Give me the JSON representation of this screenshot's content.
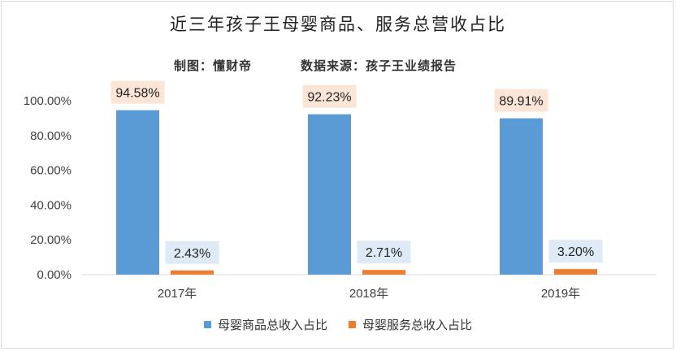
{
  "title": "近三年孩子王母婴商品、服务总营收占比",
  "subtitle_left": "制图：懂财帝",
  "subtitle_right": "数据来源：孩子王业绩报告",
  "colors": {
    "series1": "#5b9bd5",
    "series2": "#ed7d31",
    "label_bg1": "#fbe5d6",
    "label_bg2": "#deebf7",
    "grid": "#d9d9d9",
    "axis_text": "#404040"
  },
  "chart_data": {
    "type": "bar",
    "categories": [
      "2017年",
      "2018年",
      "2019年"
    ],
    "series": [
      {
        "name": "母婴商品总收入占比",
        "values": [
          94.58,
          92.23,
          89.91
        ],
        "labels": [
          "94.58%",
          "92.23%",
          "89.91%"
        ]
      },
      {
        "name": "母婴服务总收入占比",
        "values": [
          2.43,
          2.71,
          3.2
        ],
        "labels": [
          "2.43%",
          "2.71%",
          "3.20%"
        ]
      }
    ],
    "y_ticks": [
      "0.00%",
      "20.00%",
      "40.00%",
      "60.00%",
      "80.00%",
      "100.00%"
    ],
    "ylim": [
      0,
      100
    ],
    "grid": false,
    "legend_position": "bottom"
  }
}
